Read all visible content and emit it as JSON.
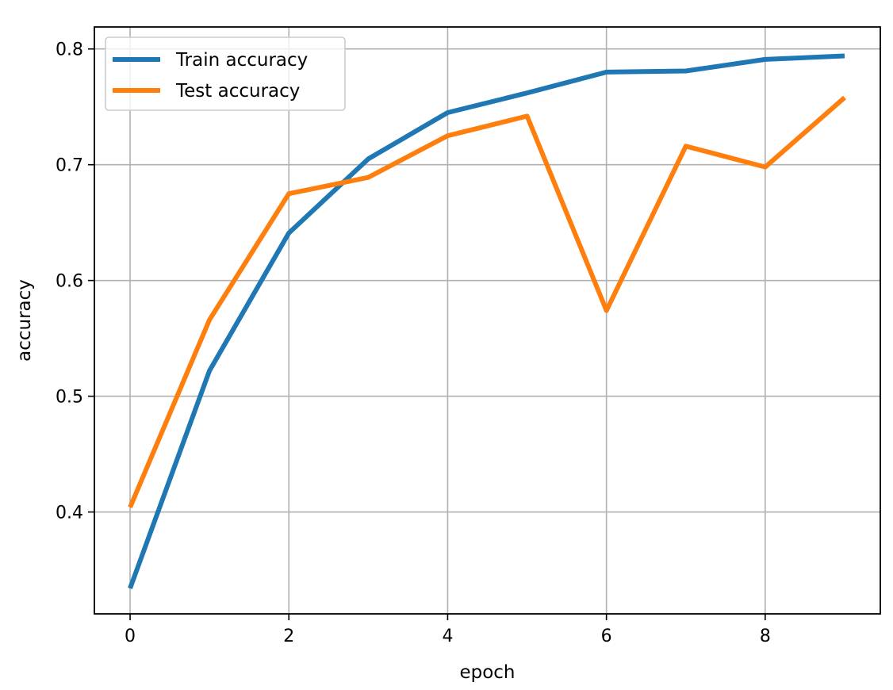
{
  "chart_data": {
    "type": "line",
    "xlabel": "epoch",
    "ylabel": "accuracy",
    "x": [
      0,
      1,
      2,
      3,
      4,
      5,
      6,
      7,
      8,
      9
    ],
    "xlim": [
      -0.45,
      9.45
    ],
    "ylim": [
      0.312,
      0.819
    ],
    "xticks": [
      0,
      2,
      4,
      6,
      8
    ],
    "yticks": [
      0.4,
      0.5,
      0.6,
      0.7,
      0.8
    ],
    "xtick_labels": [
      "0",
      "2",
      "4",
      "6",
      "8"
    ],
    "ytick_labels": [
      "0.4",
      "0.5",
      "0.6",
      "0.7",
      "0.8"
    ],
    "grid": true,
    "legend_position": "top-left",
    "series": [
      {
        "name": "Train accuracy",
        "color": "#1f77b4",
        "values": [
          0.334,
          0.522,
          0.641,
          0.705,
          0.745,
          0.762,
          0.78,
          0.781,
          0.791,
          0.794
        ]
      },
      {
        "name": "Test accuracy",
        "color": "#ff7f0e",
        "values": [
          0.404,
          0.566,
          0.675,
          0.689,
          0.725,
          0.742,
          0.574,
          0.716,
          0.698,
          0.758
        ]
      }
    ]
  }
}
